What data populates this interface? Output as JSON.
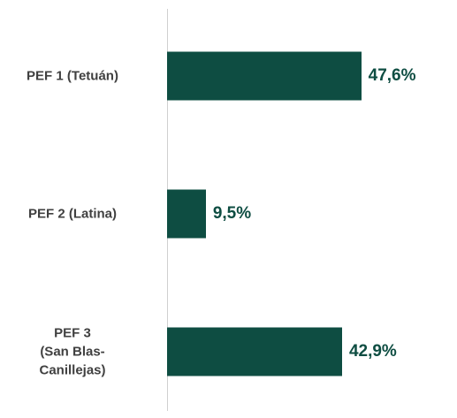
{
  "chart_data": {
    "type": "bar",
    "orientation": "horizontal",
    "categories": [
      "PEF 1 (Tetuán)",
      "PEF 2 (Latina)",
      "PEF 3\n(San Blas-\nCanillejas)"
    ],
    "values": [
      47.6,
      9.5,
      42.9
    ],
    "value_labels": [
      "47,6%",
      "9,5%",
      "42,9%"
    ],
    "color": "#0e4d42",
    "xlim": [
      0,
      70
    ]
  }
}
